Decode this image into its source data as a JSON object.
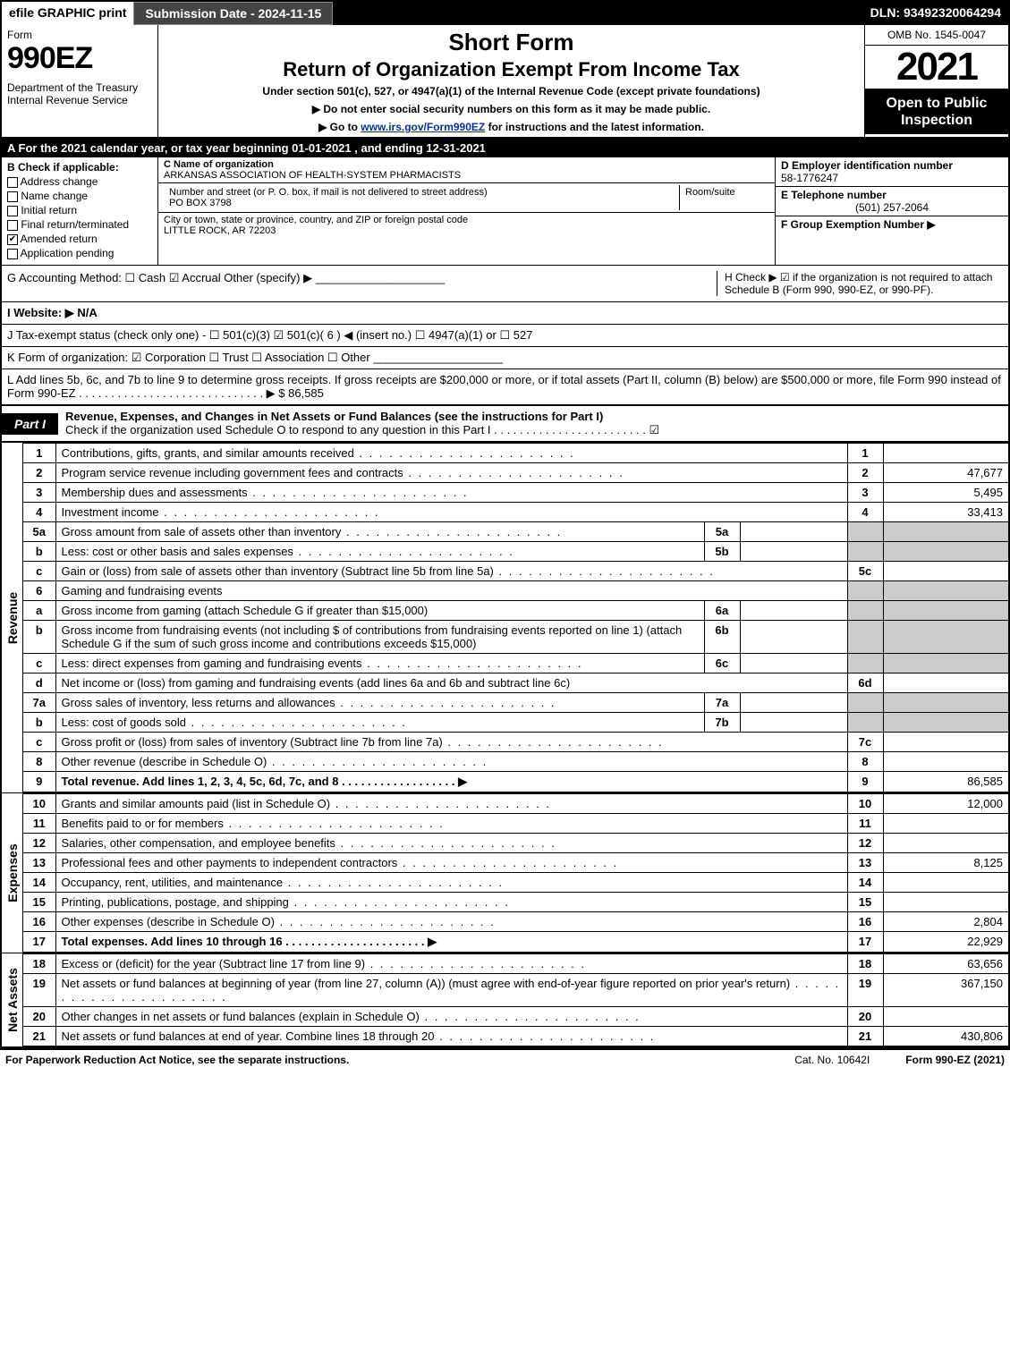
{
  "top": {
    "efile": "efile GRAPHIC print",
    "subdate": "Submission Date - 2024-11-15",
    "dln": "DLN: 93492320064294"
  },
  "hdr": {
    "form_word": "Form",
    "form_num": "990EZ",
    "dept": "Department of the Treasury\nInternal Revenue Service",
    "short": "Short Form",
    "title": "Return of Organization Exempt From Income Tax",
    "under": "Under section 501(c), 527, or 4947(a)(1) of the Internal Revenue Code (except private foundations)",
    "note1": "▶ Do not enter social security numbers on this form as it may be made public.",
    "note2_pre": "▶ Go to ",
    "note2_link": "www.irs.gov/Form990EZ",
    "note2_post": " for instructions and the latest information.",
    "omb": "OMB No. 1545-0047",
    "year": "2021",
    "open": "Open to Public Inspection"
  },
  "A": "A  For the 2021 calendar year, or tax year beginning 01-01-2021 , and ending 12-31-2021",
  "B": {
    "label": "B  Check if applicable:",
    "opts": [
      "Address change",
      "Name change",
      "Initial return",
      "Final return/terminated",
      "Amended return",
      "Application pending"
    ],
    "checked_idx": 4
  },
  "C": {
    "name_lbl": "C Name of organization",
    "name": "ARKANSAS ASSOCIATION OF HEALTH-SYSTEM PHARMACISTS",
    "street_lbl": "Number and street (or P. O. box, if mail is not delivered to street address)",
    "room_lbl": "Room/suite",
    "street": "PO BOX 3798",
    "city_lbl": "City or town, state or province, country, and ZIP or foreign postal code",
    "city": "LITTLE ROCK, AR  72203"
  },
  "D": {
    "lbl": "D Employer identification number",
    "val": "58-1776247"
  },
  "E": {
    "lbl": "E Telephone number",
    "val": "(501) 257-2064"
  },
  "F": {
    "lbl": "F Group Exemption Number  ▶",
    "val": ""
  },
  "G": "G Accounting Method:   ☐ Cash   ☑ Accrual   Other (specify) ▶ ____________________",
  "H": "H   Check ▶  ☑  if the organization is not required to attach Schedule B (Form 990, 990-EZ, or 990-PF).",
  "I": "I Website: ▶ N/A",
  "J": "J Tax-exempt status (check only one) - ☐ 501(c)(3)  ☑  501(c)( 6 ) ◀ (insert no.)  ☐  4947(a)(1) or  ☐  527",
  "K": "K Form of organization:   ☑ Corporation   ☐ Trust   ☐ Association   ☐ Other  ____________________",
  "L": "L Add lines 5b, 6c, and 7b to line 9 to determine gross receipts. If gross receipts are $200,000 or more, or if total assets (Part II, column (B) below) are $500,000 or more, file Form 990 instead of Form 990-EZ  . . . . . . . . . . . . . . . . . . . . . . . . . . . . .  ▶ $ 86,585",
  "part1": {
    "tag": "Part I",
    "title": "Revenue, Expenses, and Changes in Net Assets or Fund Balances (see the instructions for Part I)",
    "sub": "Check if the organization used Schedule O to respond to any question in this Part I . . . . . . . . . . . . . . . . . . . . . . . .  ☑"
  },
  "section_labels": {
    "rev": "Revenue",
    "exp": "Expenses",
    "na": "Net Assets"
  },
  "lines": {
    "l1": {
      "ln": "1",
      "desc": "Contributions, gifts, grants, and similar amounts received",
      "num": "1",
      "amt": ""
    },
    "l2": {
      "ln": "2",
      "desc": "Program service revenue including government fees and contracts",
      "num": "2",
      "amt": "47,677"
    },
    "l3": {
      "ln": "3",
      "desc": "Membership dues and assessments",
      "num": "3",
      "amt": "5,495"
    },
    "l4": {
      "ln": "4",
      "desc": "Investment income",
      "num": "4",
      "amt": "33,413"
    },
    "l5a": {
      "ln": "5a",
      "desc": "Gross amount from sale of assets other than inventory",
      "sub": "5a",
      "subval": ""
    },
    "l5b": {
      "ln": "b",
      "desc": "Less: cost or other basis and sales expenses",
      "sub": "5b",
      "subval": ""
    },
    "l5c": {
      "ln": "c",
      "desc": "Gain or (loss) from sale of assets other than inventory (Subtract line 5b from line 5a)",
      "num": "5c",
      "amt": ""
    },
    "l6": {
      "ln": "6",
      "desc": "Gaming and fundraising events"
    },
    "l6a": {
      "ln": "a",
      "desc": "Gross income from gaming (attach Schedule G if greater than $15,000)",
      "sub": "6a",
      "subval": ""
    },
    "l6b": {
      "ln": "b",
      "desc": "Gross income from fundraising events (not including $                of contributions from fundraising events reported on line 1) (attach Schedule G if the sum of such gross income and contributions exceeds $15,000)",
      "sub": "6b",
      "subval": ""
    },
    "l6c": {
      "ln": "c",
      "desc": "Less: direct expenses from gaming and fundraising events",
      "sub": "6c",
      "subval": ""
    },
    "l6d": {
      "ln": "d",
      "desc": "Net income or (loss) from gaming and fundraising events (add lines 6a and 6b and subtract line 6c)",
      "num": "6d",
      "amt": ""
    },
    "l7a": {
      "ln": "7a",
      "desc": "Gross sales of inventory, less returns and allowances",
      "sub": "7a",
      "subval": ""
    },
    "l7b": {
      "ln": "b",
      "desc": "Less: cost of goods sold",
      "sub": "7b",
      "subval": ""
    },
    "l7c": {
      "ln": "c",
      "desc": "Gross profit or (loss) from sales of inventory (Subtract line 7b from line 7a)",
      "num": "7c",
      "amt": ""
    },
    "l8": {
      "ln": "8",
      "desc": "Other revenue (describe in Schedule O)",
      "num": "8",
      "amt": ""
    },
    "l9": {
      "ln": "9",
      "desc": "Total revenue. Add lines 1, 2, 3, 4, 5c, 6d, 7c, and 8   . . . . . . . . . . . . . . . . . .   ▶",
      "num": "9",
      "amt": "86,585"
    },
    "l10": {
      "ln": "10",
      "desc": "Grants and similar amounts paid (list in Schedule O)",
      "num": "10",
      "amt": "12,000"
    },
    "l11": {
      "ln": "11",
      "desc": "Benefits paid to or for members",
      "num": "11",
      "amt": ""
    },
    "l12": {
      "ln": "12",
      "desc": "Salaries, other compensation, and employee benefits",
      "num": "12",
      "amt": ""
    },
    "l13": {
      "ln": "13",
      "desc": "Professional fees and other payments to independent contractors",
      "num": "13",
      "amt": "8,125"
    },
    "l14": {
      "ln": "14",
      "desc": "Occupancy, rent, utilities, and maintenance",
      "num": "14",
      "amt": ""
    },
    "l15": {
      "ln": "15",
      "desc": "Printing, publications, postage, and shipping",
      "num": "15",
      "amt": ""
    },
    "l16": {
      "ln": "16",
      "desc": "Other expenses (describe in Schedule O)",
      "num": "16",
      "amt": "2,804"
    },
    "l17": {
      "ln": "17",
      "desc": "Total expenses. Add lines 10 through 16      . . . . . . . . . . . . . . . . . . . . . .   ▶",
      "num": "17",
      "amt": "22,929"
    },
    "l18": {
      "ln": "18",
      "desc": "Excess or (deficit) for the year (Subtract line 17 from line 9)",
      "num": "18",
      "amt": "63,656"
    },
    "l19": {
      "ln": "19",
      "desc": "Net assets or fund balances at beginning of year (from line 27, column (A)) (must agree with end-of-year figure reported on prior year's return)",
      "num": "19",
      "amt": "367,150"
    },
    "l20": {
      "ln": "20",
      "desc": "Other changes in net assets or fund balances (explain in Schedule O)",
      "num": "20",
      "amt": ""
    },
    "l21": {
      "ln": "21",
      "desc": "Net assets or fund balances at end of year. Combine lines 18 through 20",
      "num": "21",
      "amt": "430,806"
    }
  },
  "footer": {
    "l": "For Paperwork Reduction Act Notice, see the separate instructions.",
    "m": "Cat. No. 10642I",
    "r": "Form 990-EZ (2021)"
  }
}
